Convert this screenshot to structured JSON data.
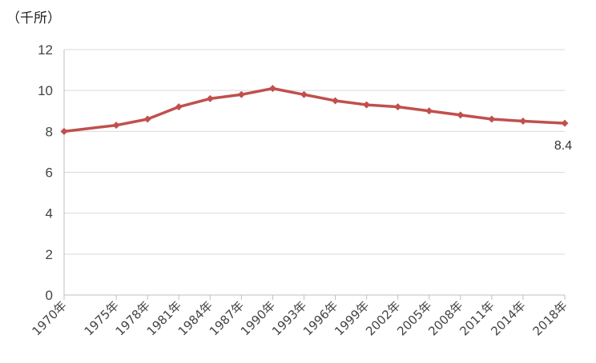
{
  "chart_data": {
    "type": "line",
    "unit_label": "（千所）",
    "x": [
      "1970年",
      "1975年",
      "1978年",
      "1981年",
      "1984年",
      "1987年",
      "1990年",
      "1993年",
      "1996年",
      "1999年",
      "2002年",
      "2005年",
      "2008年",
      "2011年",
      "2014年",
      "2018年"
    ],
    "x_years": [
      1970,
      1975,
      1978,
      1981,
      1984,
      1987,
      1990,
      1993,
      1996,
      1999,
      2002,
      2005,
      2008,
      2011,
      2014,
      2018
    ],
    "series": [
      {
        "values": [
          8.0,
          8.3,
          8.6,
          9.2,
          9.6,
          9.8,
          10.1,
          9.8,
          9.5,
          9.3,
          9.2,
          9.0,
          8.8,
          8.6,
          8.5,
          8.4
        ]
      }
    ],
    "data_labels": [
      {
        "index": 15,
        "text": "8.4"
      }
    ],
    "ylim": [
      0,
      12
    ],
    "yticks": [
      0,
      2,
      4,
      6,
      8,
      10,
      12
    ],
    "grid": true,
    "color": "#c0504d"
  }
}
